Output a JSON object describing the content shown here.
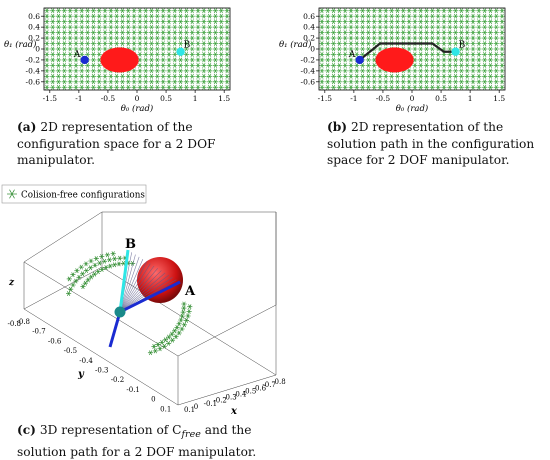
{
  "chart_data": [
    {
      "type": "scatter",
      "xlabel": "θ₀ (rad)",
      "ylabel": "θ₁ (rad)",
      "xlim": [
        -1.6,
        1.6
      ],
      "ylim": [
        -0.75,
        0.75
      ],
      "xticks": [
        "-1.5",
        "-1",
        "-0.5",
        "0",
        "0.5",
        "1",
        "1.5"
      ],
      "yticks": [
        "0.6",
        "0.4",
        "0.2",
        "0",
        "-0.2",
        "-0.4",
        "-0.6"
      ],
      "obstacle": {
        "center": [
          -0.3,
          -0.2
        ],
        "radius_x": 0.33,
        "radius_y": 0.23,
        "color": "#ff1a1a"
      },
      "points": [
        {
          "label": "A",
          "x": -0.9,
          "y": -0.2,
          "color": "#1a2bd1"
        },
        {
          "label": "B",
          "x": 0.75,
          "y": -0.05,
          "color": "#2ee6e6"
        }
      ],
      "grid_marker_color": "#3aa03a"
    },
    {
      "type": "line",
      "xlabel": "θ₀ (rad)",
      "ylabel": "θ₁ (rad)",
      "xlim": [
        -1.6,
        1.6
      ],
      "ylim": [
        -0.75,
        0.75
      ],
      "xticks": [
        "-1.5",
        "-1",
        "-0.5",
        "0",
        "0.5",
        "1",
        "1.5"
      ],
      "yticks": [
        "0.6",
        "0.4",
        "0.2",
        "0",
        "-0.2",
        "-0.4",
        "-0.6"
      ],
      "obstacle": {
        "center": [
          -0.3,
          -0.2
        ],
        "radius_x": 0.33,
        "radius_y": 0.23,
        "color": "#ff1a1a"
      },
      "points": [
        {
          "label": "A",
          "x": -0.9,
          "y": -0.2,
          "color": "#1a2bd1"
        },
        {
          "label": "B",
          "x": 0.75,
          "y": -0.05,
          "color": "#2ee6e6"
        }
      ],
      "path": {
        "x": [
          -0.9,
          -0.55,
          0.35,
          0.55,
          0.75
        ],
        "y": [
          -0.2,
          0.1,
          0.1,
          -0.05,
          -0.05
        ],
        "color": "#222222"
      },
      "grid_marker_color": "#3aa03a"
    },
    {
      "type": "scatter3d",
      "legend": "Colision-free configurations",
      "axis_labels": {
        "x": "x",
        "y": "y",
        "z": "z"
      },
      "x_ticks": [
        "0.1",
        "0",
        "-0.1",
        "-0.2",
        "-0.3",
        "-0.4",
        "-0.5",
        "-0.6",
        "-0.7",
        "-0.8"
      ],
      "y_ticks": [
        "-0.8",
        "-0.7",
        "-0.6",
        "-0.5",
        "-0.4",
        "-0.3",
        "-0.2",
        "-0.1",
        "0",
        "0.1"
      ],
      "z_ticks": [
        "-0.8"
      ],
      "point_labels": [
        "A",
        "B"
      ],
      "colors": {
        "free": "#2e8b2e",
        "obstacle": "#cc1111",
        "arm_start": "#1a2bd1",
        "arm_end": "#2ee6e6"
      }
    }
  ],
  "captions": {
    "a_tag": "(a)",
    "a_text": "2D representation of the configuration space for a 2 DOF manipulator.",
    "b_tag": "(b)",
    "b_text": "2D representation of the solution path in the configuration space for 2 DOF manipulator.",
    "c_tag": "(c)",
    "c_text_1": "3D representation of C",
    "c_sub": "free",
    "c_text_2": " and the solution path for a 2 DOF manipulator."
  }
}
